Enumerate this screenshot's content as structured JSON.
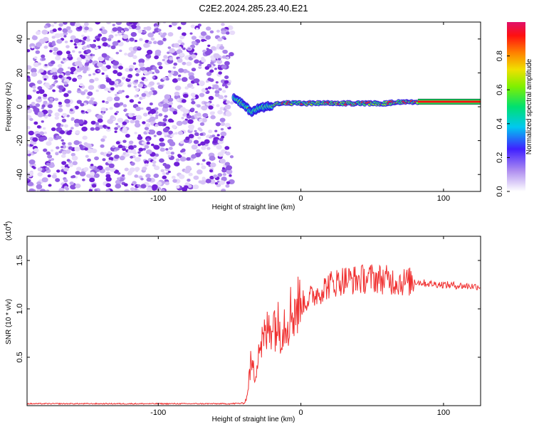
{
  "figure_title": "C2E2.2024.285.23.40.E21",
  "chart_data": [
    {
      "type": "heatmap",
      "xlabel": "Height of straight line (km)",
      "ylabel": "Frequency (Hz)",
      "xlim": [
        -192,
        126
      ],
      "ylim": [
        -50,
        50
      ],
      "xticks": [
        -100,
        0,
        100
      ],
      "yticks": [
        -40,
        -20,
        0,
        20,
        40
      ],
      "noise_region_x": [
        -192,
        -48
      ],
      "signal_band": {
        "x": [
          -47,
          -40,
          -35,
          -30,
          -25,
          -20,
          -15,
          -10,
          0,
          10,
          20,
          30,
          40,
          50,
          60,
          70,
          80,
          126
        ],
        "freq": [
          5,
          1,
          -3,
          -1,
          0,
          1,
          2,
          2,
          2,
          2,
          2,
          2,
          2,
          2,
          2,
          3,
          3,
          3
        ]
      },
      "colorbar": {
        "label": "Normalized spectral amplitude",
        "range": [
          0,
          1
        ],
        "ticks": [
          "0.0",
          "0.2",
          "0.4",
          "0.6",
          "0.8"
        ],
        "colormap": [
          "#ffffff",
          "#7a20d8",
          "#2030ff",
          "#00d8e8",
          "#00e840",
          "#d8e800",
          "#ff8000",
          "#ff0000",
          "#e0106a"
        ]
      }
    },
    {
      "type": "line",
      "xlabel": "Height of straight line (km)",
      "ylabel": "SNR (10 * v/v)",
      "multiplier_label": "(x10",
      "multiplier_exp": "4",
      "xlim": [
        -192,
        126
      ],
      "ylim": [
        0,
        17500
      ],
      "xticks": [
        -100,
        0,
        100
      ],
      "yticks": [
        5000,
        10000,
        15000
      ],
      "ytick_labels": [
        "0.5",
        "1.0",
        "1.5"
      ],
      "color": "#f03030",
      "envelope": {
        "x": [
          -192,
          -50,
          -40,
          -38,
          -35,
          -32,
          -30,
          -25,
          -20,
          -15,
          -10,
          -5,
          0,
          10,
          20,
          30,
          40,
          50,
          60,
          70,
          80,
          90,
          100,
          110,
          126
        ],
        "y": [
          200,
          200,
          250,
          800,
          4500,
          3000,
          6000,
          7000,
          9000,
          8000,
          9000,
          10000,
          10500,
          11500,
          12500,
          13000,
          13000,
          13200,
          13000,
          12800,
          12800,
          12600,
          12500,
          12400,
          12300
        ]
      }
    }
  ]
}
